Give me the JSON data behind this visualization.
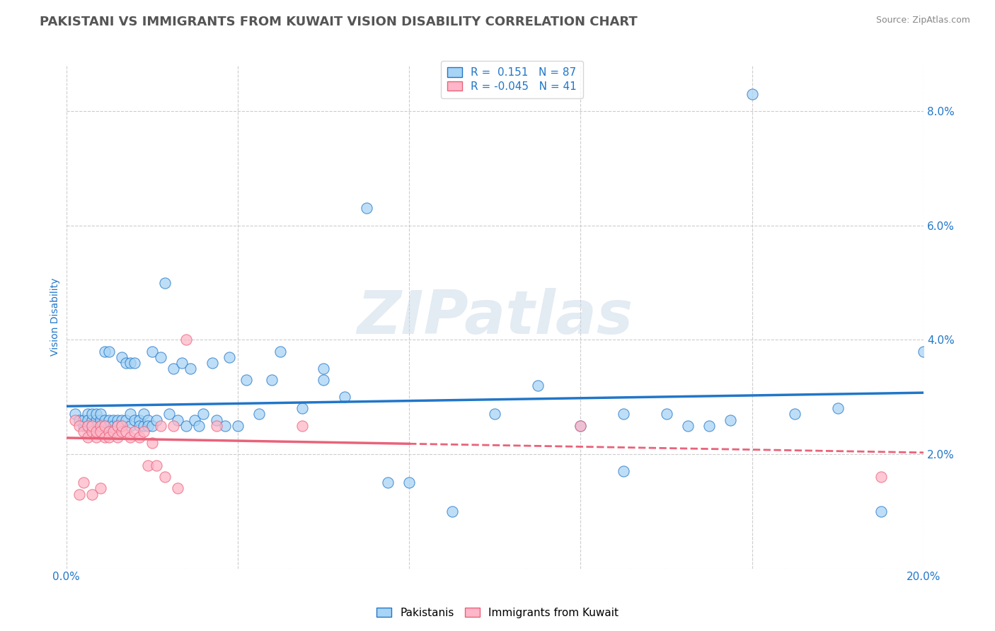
{
  "title": "PAKISTANI VS IMMIGRANTS FROM KUWAIT VISION DISABILITY CORRELATION CHART",
  "source": "Source: ZipAtlas.com",
  "ylabel": "Vision Disability",
  "xlim": [
    0.0,
    0.2
  ],
  "ylim": [
    0.0,
    0.088
  ],
  "x_ticks": [
    0.0,
    0.04,
    0.08,
    0.12,
    0.16,
    0.2
  ],
  "x_tick_labels": [
    "0.0%",
    "",
    "",
    "",
    "",
    "20.0%"
  ],
  "y_ticks": [
    0.0,
    0.02,
    0.04,
    0.06,
    0.08
  ],
  "y_tick_labels": [
    "",
    "2.0%",
    "4.0%",
    "6.0%",
    "8.0%"
  ],
  "blue_scatter_x": [
    0.002,
    0.003,
    0.004,
    0.004,
    0.005,
    0.005,
    0.005,
    0.006,
    0.006,
    0.006,
    0.007,
    0.007,
    0.007,
    0.008,
    0.008,
    0.008,
    0.009,
    0.009,
    0.009,
    0.01,
    0.01,
    0.01,
    0.011,
    0.011,
    0.012,
    0.012,
    0.013,
    0.013,
    0.013,
    0.014,
    0.014,
    0.015,
    0.015,
    0.015,
    0.016,
    0.016,
    0.017,
    0.017,
    0.018,
    0.018,
    0.019,
    0.019,
    0.02,
    0.02,
    0.021,
    0.022,
    0.023,
    0.024,
    0.025,
    0.026,
    0.027,
    0.028,
    0.029,
    0.03,
    0.031,
    0.032,
    0.034,
    0.035,
    0.037,
    0.038,
    0.04,
    0.042,
    0.045,
    0.048,
    0.05,
    0.055,
    0.06,
    0.065,
    0.07,
    0.08,
    0.09,
    0.1,
    0.11,
    0.12,
    0.13,
    0.14,
    0.15,
    0.16,
    0.17,
    0.18,
    0.13,
    0.145,
    0.155,
    0.19,
    0.2,
    0.06,
    0.075
  ],
  "blue_scatter_y": [
    0.027,
    0.026,
    0.025,
    0.026,
    0.027,
    0.026,
    0.025,
    0.026,
    0.025,
    0.027,
    0.026,
    0.025,
    0.027,
    0.026,
    0.025,
    0.027,
    0.038,
    0.026,
    0.025,
    0.026,
    0.025,
    0.038,
    0.026,
    0.025,
    0.026,
    0.025,
    0.026,
    0.037,
    0.025,
    0.026,
    0.036,
    0.027,
    0.036,
    0.025,
    0.026,
    0.036,
    0.026,
    0.025,
    0.027,
    0.025,
    0.026,
    0.025,
    0.038,
    0.025,
    0.026,
    0.037,
    0.05,
    0.027,
    0.035,
    0.026,
    0.036,
    0.025,
    0.035,
    0.026,
    0.025,
    0.027,
    0.036,
    0.026,
    0.025,
    0.037,
    0.025,
    0.033,
    0.027,
    0.033,
    0.038,
    0.028,
    0.033,
    0.03,
    0.063,
    0.015,
    0.01,
    0.027,
    0.032,
    0.025,
    0.017,
    0.027,
    0.025,
    0.083,
    0.027,
    0.028,
    0.027,
    0.025,
    0.026,
    0.01,
    0.038,
    0.035,
    0.015
  ],
  "pink_scatter_x": [
    0.002,
    0.003,
    0.004,
    0.005,
    0.005,
    0.006,
    0.006,
    0.007,
    0.007,
    0.008,
    0.008,
    0.009,
    0.009,
    0.01,
    0.01,
    0.011,
    0.012,
    0.012,
    0.013,
    0.013,
    0.014,
    0.015,
    0.016,
    0.017,
    0.018,
    0.019,
    0.02,
    0.021,
    0.022,
    0.023,
    0.025,
    0.026,
    0.028,
    0.035,
    0.055,
    0.12,
    0.19,
    0.003,
    0.004,
    0.006,
    0.008
  ],
  "pink_scatter_y": [
    0.026,
    0.025,
    0.024,
    0.025,
    0.023,
    0.024,
    0.025,
    0.023,
    0.024,
    0.025,
    0.024,
    0.023,
    0.025,
    0.024,
    0.023,
    0.024,
    0.025,
    0.023,
    0.024,
    0.025,
    0.024,
    0.023,
    0.024,
    0.023,
    0.024,
    0.018,
    0.022,
    0.018,
    0.025,
    0.016,
    0.025,
    0.014,
    0.04,
    0.025,
    0.025,
    0.025,
    0.016,
    0.013,
    0.015,
    0.013,
    0.014
  ],
  "blue_color": "#A8D4F5",
  "pink_color": "#FFB6C8",
  "blue_line_color": "#2176C8",
  "pink_line_color": "#E8637A",
  "blue_trend_start_y": 0.026,
  "blue_trend_end_y": 0.037,
  "pink_trend_start_y": 0.022,
  "pink_trend_end_y": 0.017,
  "legend_R1": "0.151",
  "legend_N1": "87",
  "legend_R2": "-0.045",
  "legend_N2": "41",
  "legend_label1": "Pakistanis",
  "legend_label2": "Immigrants from Kuwait",
  "watermark": "ZIPatlas",
  "title_color": "#555555",
  "axis_label_color": "#2176C8",
  "tick_color": "#2176C8",
  "background_color": "#ffffff",
  "grid_color": "#cccccc",
  "title_fontsize": 13,
  "axis_label_fontsize": 10,
  "tick_fontsize": 11,
  "legend_fontsize": 11
}
